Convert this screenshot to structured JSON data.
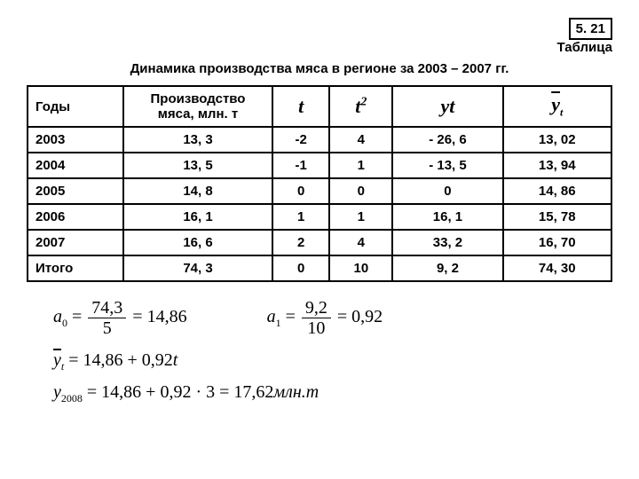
{
  "header": {
    "badge": "5. 21",
    "label": "Таблица"
  },
  "title": "Динамика производства мяса в регионе за 2003 – 2007 гг.",
  "table": {
    "columns": {
      "c1": "Годы",
      "c2": "Производство мяса, млн. т"
    },
    "rows": [
      {
        "year": "2003",
        "prod": "13, 3",
        "t": "-2",
        "t2": "4",
        "yt": "- 26, 6",
        "ybar": "13, 02"
      },
      {
        "year": "2004",
        "prod": "13, 5",
        "t": "-1",
        "t2": "1",
        "yt": "- 13, 5",
        "ybar": "13, 94"
      },
      {
        "year": "2005",
        "prod": "14, 8",
        "t": "0",
        "t2": "0",
        "yt": "0",
        "ybar": "14, 86"
      },
      {
        "year": "2006",
        "prod": "16, 1",
        "t": "1",
        "t2": "1",
        "yt": "16, 1",
        "ybar": "15, 78"
      },
      {
        "year": "2007",
        "prod": "16, 6",
        "t": "2",
        "t2": "4",
        "yt": "33, 2",
        "ybar": "16, 70"
      },
      {
        "year": "Итого",
        "prod": "74, 3",
        "t": "0",
        "t2": "10",
        "yt": "9, 2",
        "ybar": "74, 30"
      }
    ]
  },
  "formulas": {
    "a0_num": "74,3",
    "a0_den": "5",
    "a0_res": "14,86",
    "a1_num": "9,2",
    "a1_den": "10",
    "a1_res": "0,92",
    "ybar_expr": "14,86 + 0,92",
    "y2008_expr": "14,86 + 0,92 · 3 = 17,62",
    "unit": "млн.т"
  }
}
